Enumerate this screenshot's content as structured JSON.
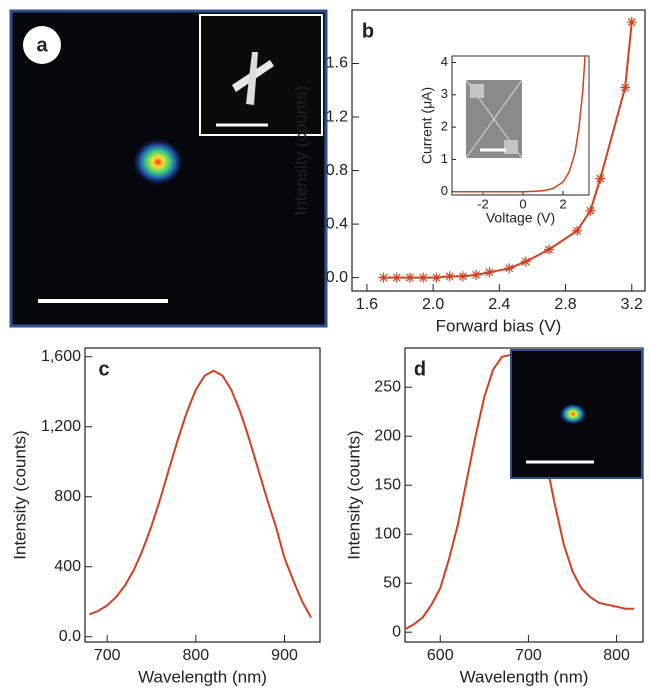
{
  "chart_data": [
    {
      "type": "image",
      "label": "a"
    },
    {
      "type": "line",
      "label": "b",
      "marker": "star",
      "color": "#d4401e",
      "xlabel": "Forward bias (V)",
      "ylabel": "Intensity (counts)",
      "x": [
        1.7,
        1.78,
        1.86,
        1.94,
        2.02,
        2.1,
        2.18,
        2.26,
        2.34,
        2.46,
        2.56,
        2.7,
        2.87,
        2.95,
        3.01,
        3.16,
        3.2
      ],
      "values": [
        0,
        0,
        0,
        0,
        0,
        0.01,
        0.01,
        0.02,
        0.04,
        0.07,
        0.12,
        0.21,
        0.35,
        0.5,
        0.74,
        1.42,
        1.91
      ],
      "xlim": [
        1.51,
        3.28
      ],
      "ylim": [
        -0.1,
        2.0
      ],
      "xticks": [
        1.6,
        {
          "value": 2,
          "label": "2.0"
        },
        2.4,
        2.8,
        3.2
      ],
      "yticks": [
        {
          "value": 0,
          "label": "0.0"
        },
        0.4,
        0.8,
        1.2,
        1.6
      ]
    },
    {
      "type": "line",
      "inset": true,
      "color": "#d4401e",
      "xlabel": "Voltage (V)",
      "ylabel": "Current (μA)",
      "x": [
        -3.4,
        -2,
        -1,
        0,
        0.5,
        1,
        1.5,
        2,
        2.3,
        2.6,
        2.8,
        3,
        3.1
      ],
      "values": [
        0,
        0,
        0,
        0,
        0.01,
        0.03,
        0.1,
        0.3,
        0.6,
        1.2,
        2,
        3.2,
        4.2
      ],
      "xlim": [
        -3.55,
        3.3
      ],
      "ylim": [
        -0.1,
        4.2
      ],
      "xticks": [
        -2,
        0,
        2
      ],
      "yticks": [
        0,
        1,
        2,
        3,
        4
      ]
    },
    {
      "type": "line",
      "label": "c",
      "color": "#d4401e",
      "xlabel": "Wavelength (nm)",
      "ylabel": "Intensity (counts)",
      "x": [
        680,
        690,
        700,
        710,
        720,
        730,
        740,
        750,
        760,
        770,
        780,
        790,
        800,
        810,
        820,
        830,
        840,
        850,
        860,
        870,
        880,
        890,
        900,
        910,
        920,
        930
      ],
      "values": [
        128,
        148,
        180,
        226,
        292,
        381,
        495,
        633,
        791,
        962,
        1131,
        1286,
        1411,
        1492,
        1520,
        1492,
        1411,
        1286,
        1131,
        962,
        791,
        633,
        450,
        320,
        200,
        110
      ],
      "xlim": [
        675,
        940
      ],
      "ylim": [
        -30,
        1650
      ],
      "xticks": [
        700,
        800,
        900
      ],
      "yticks": [
        {
          "value": 0,
          "label": "0.0"
        },
        400,
        800,
        {
          "value": 1200,
          "label": "1,200"
        },
        {
          "value": 1600,
          "label": "1,600"
        }
      ]
    },
    {
      "type": "line",
      "label": "d",
      "color": "#d4401e",
      "xlabel": "Wavelength (nm)",
      "ylabel": "Intensity (counts)",
      "x": [
        560,
        570,
        580,
        590,
        600,
        610,
        620,
        630,
        640,
        650,
        660,
        670,
        680,
        690,
        700,
        710,
        720,
        730,
        740,
        750,
        760,
        770,
        780,
        790,
        800,
        810,
        820
      ],
      "values": [
        3,
        8,
        15,
        28,
        45,
        75,
        110,
        155,
        200,
        240,
        268,
        281,
        283,
        276,
        255,
        220,
        175,
        130,
        90,
        62,
        45,
        36,
        30,
        28,
        26,
        24,
        24
      ],
      "xlim": [
        560,
        830
      ],
      "ylim": [
        -10,
        290
      ],
      "xticks": [
        600,
        700,
        800
      ],
      "yticks": [
        0,
        50,
        100,
        150,
        200,
        250
      ]
    }
  ]
}
